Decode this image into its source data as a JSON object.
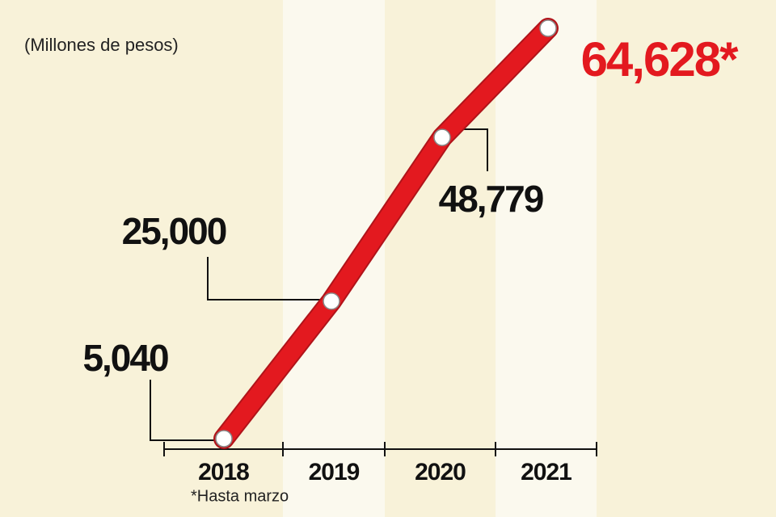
{
  "chart_data": {
    "type": "line",
    "subtitle": "(Millones de pesos)",
    "note": "*Hasta marzo",
    "categories": [
      "2018",
      "2019",
      "2020",
      "2021"
    ],
    "values": [
      5040,
      25000,
      48779,
      64628
    ],
    "value_labels": [
      "5,040",
      "25,000",
      "48,779",
      "64,628*"
    ],
    "value_label_colors": [
      "#111111",
      "#111111",
      "#111111",
      "#e3191f"
    ],
    "color": "#e3191f"
  }
}
